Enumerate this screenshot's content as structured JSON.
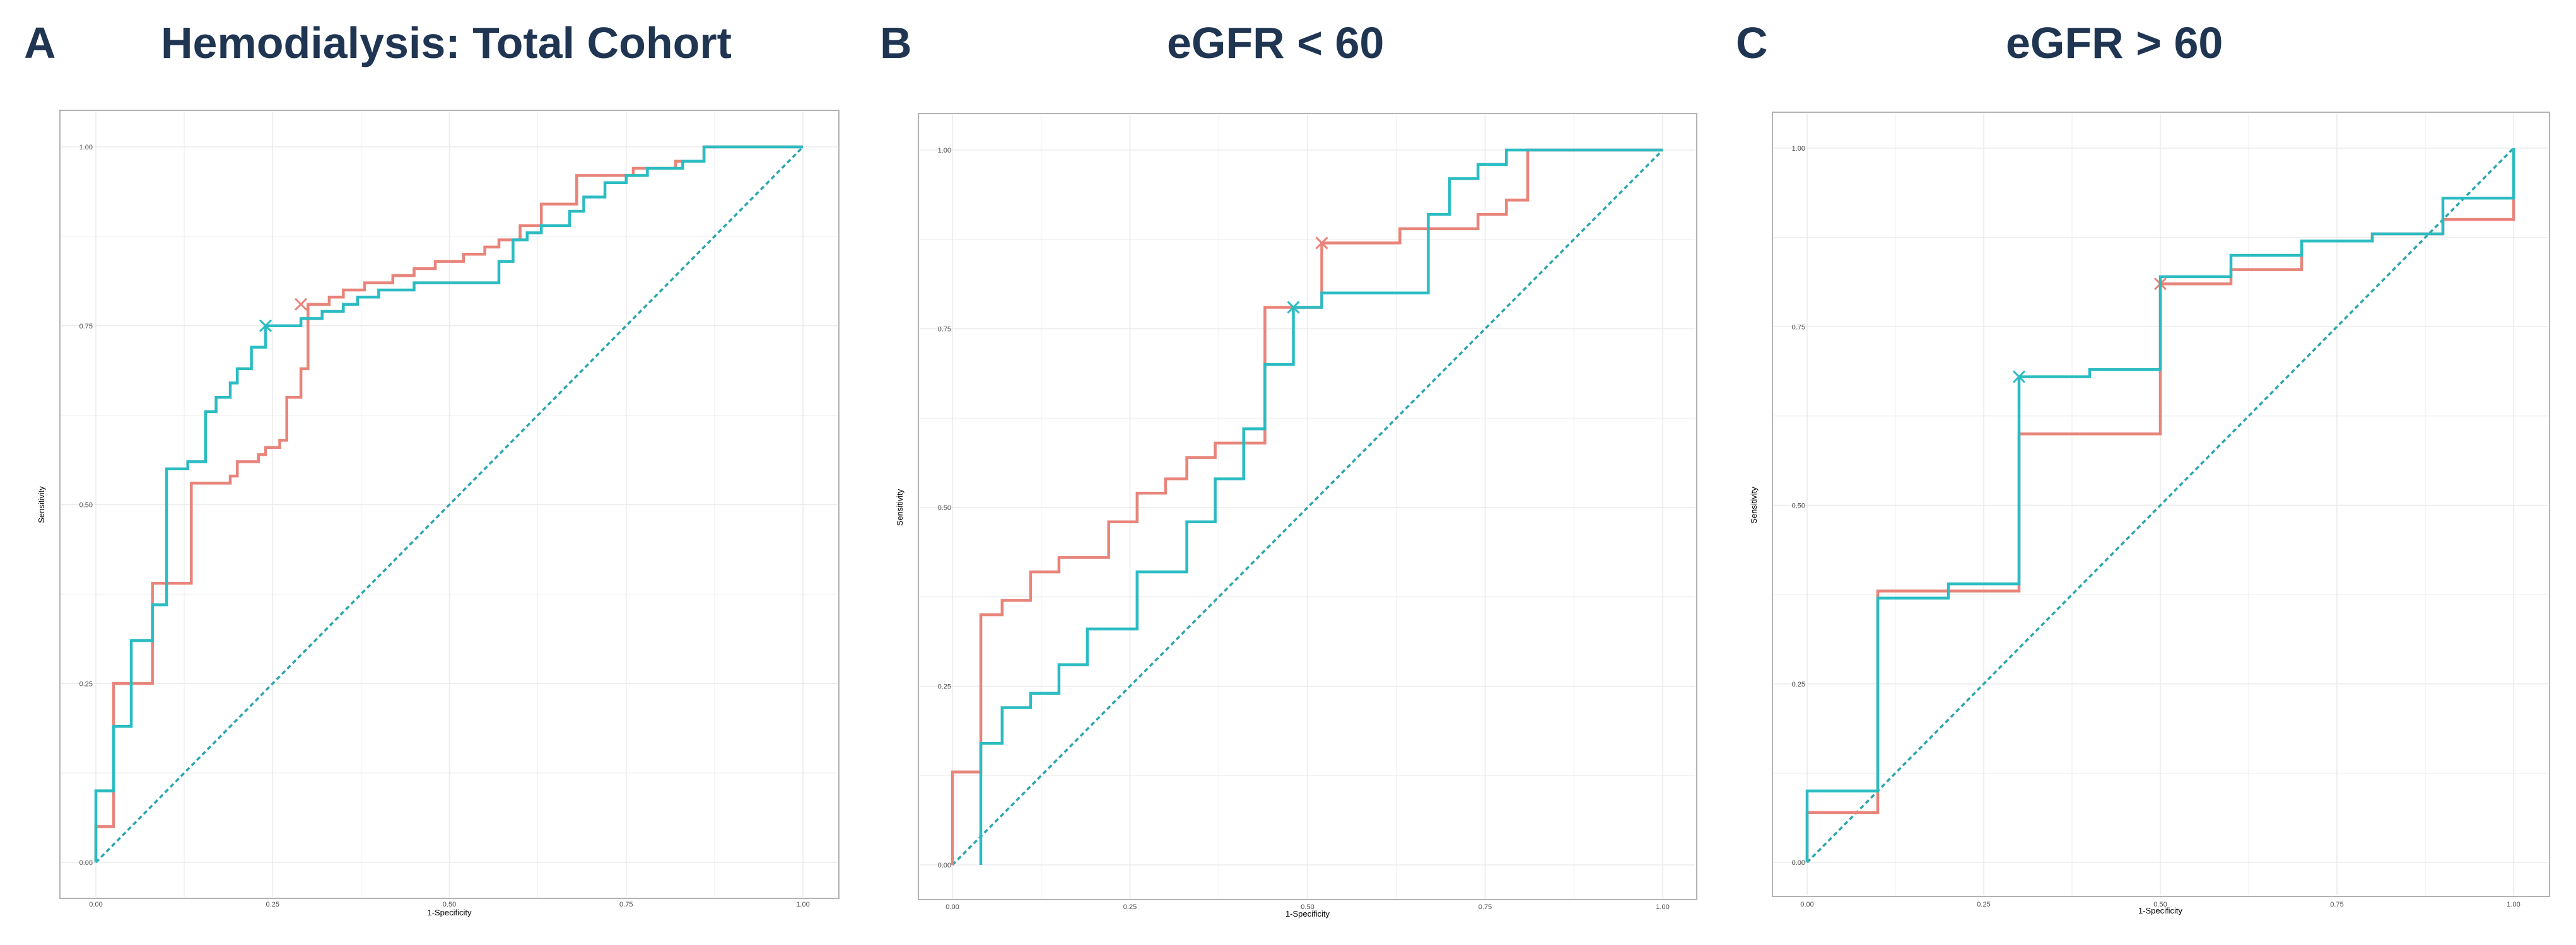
{
  "colors": {
    "curve_a": "#e8847a",
    "curve_b": "#2bbcc2",
    "diagonal": "#2aa6ad",
    "title": "#1f3552",
    "frame": "#b3b3b3",
    "grid": "#ebebeb"
  },
  "panels": [
    {
      "letter": "A",
      "title": "Hemodialysis: Total Cohort"
    },
    {
      "letter": "B",
      "title": "eGFR < 60"
    },
    {
      "letter": "C",
      "title": "eGFR > 60"
    }
  ],
  "chart_data": [
    {
      "type": "line",
      "title": "Hemodialysis: Total Cohort",
      "xlabel": "1-Specificity",
      "ylabel": "Sensitivity",
      "xlim": [
        0,
        1
      ],
      "ylim": [
        0,
        1
      ],
      "x_ticks": [
        "0.00",
        "0.25",
        "0.50",
        "0.75",
        "1.00"
      ],
      "y_ticks": [
        "0.00",
        "0.25",
        "0.50",
        "0.75",
        "1.00"
      ],
      "series": [
        {
          "name": "curve-red",
          "color": "#e8847a",
          "points": [
            [
              0,
              0
            ],
            [
              0,
              0.05
            ],
            [
              0.025,
              0.05
            ],
            [
              0.025,
              0.25
            ],
            [
              0.08,
              0.25
            ],
            [
              0.08,
              0.39
            ],
            [
              0.135,
              0.39
            ],
            [
              0.135,
              0.53
            ],
            [
              0.19,
              0.53
            ],
            [
              0.19,
              0.54
            ],
            [
              0.2,
              0.54
            ],
            [
              0.2,
              0.56
            ],
            [
              0.23,
              0.56
            ],
            [
              0.23,
              0.57
            ],
            [
              0.24,
              0.57
            ],
            [
              0.24,
              0.58
            ],
            [
              0.26,
              0.58
            ],
            [
              0.26,
              0.59
            ],
            [
              0.27,
              0.59
            ],
            [
              0.27,
              0.65
            ],
            [
              0.29,
              0.65
            ],
            [
              0.29,
              0.69
            ],
            [
              0.3,
              0.69
            ],
            [
              0.3,
              0.78
            ],
            [
              0.33,
              0.78
            ],
            [
              0.33,
              0.79
            ],
            [
              0.35,
              0.79
            ],
            [
              0.35,
              0.8
            ],
            [
              0.38,
              0.8
            ],
            [
              0.38,
              0.81
            ],
            [
              0.42,
              0.81
            ],
            [
              0.42,
              0.82
            ],
            [
              0.45,
              0.82
            ],
            [
              0.45,
              0.83
            ],
            [
              0.48,
              0.83
            ],
            [
              0.48,
              0.84
            ],
            [
              0.52,
              0.84
            ],
            [
              0.52,
              0.85
            ],
            [
              0.55,
              0.85
            ],
            [
              0.55,
              0.86
            ],
            [
              0.57,
              0.86
            ],
            [
              0.57,
              0.87
            ],
            [
              0.6,
              0.87
            ],
            [
              0.6,
              0.89
            ],
            [
              0.63,
              0.89
            ],
            [
              0.63,
              0.92
            ],
            [
              0.68,
              0.92
            ],
            [
              0.68,
              0.96
            ],
            [
              0.76,
              0.96
            ],
            [
              0.76,
              0.97
            ],
            [
              0.82,
              0.97
            ],
            [
              0.82,
              0.98
            ],
            [
              0.86,
              0.98
            ],
            [
              0.86,
              1
            ],
            [
              1,
              1
            ]
          ],
          "marker": [
            0.29,
            0.78
          ]
        },
        {
          "name": "curve-teal",
          "color": "#2bbcc2",
          "points": [
            [
              0,
              0
            ],
            [
              0,
              0.1
            ],
            [
              0.025,
              0.1
            ],
            [
              0.025,
              0.19
            ],
            [
              0.05,
              0.19
            ],
            [
              0.05,
              0.31
            ],
            [
              0.08,
              0.31
            ],
            [
              0.08,
              0.36
            ],
            [
              0.1,
              0.36
            ],
            [
              0.1,
              0.55
            ],
            [
              0.13,
              0.55
            ],
            [
              0.13,
              0.56
            ],
            [
              0.155,
              0.56
            ],
            [
              0.155,
              0.63
            ],
            [
              0.17,
              0.63
            ],
            [
              0.17,
              0.65
            ],
            [
              0.19,
              0.65
            ],
            [
              0.19,
              0.67
            ],
            [
              0.2,
              0.67
            ],
            [
              0.2,
              0.69
            ],
            [
              0.22,
              0.69
            ],
            [
              0.22,
              0.72
            ],
            [
              0.24,
              0.72
            ],
            [
              0.24,
              0.75
            ],
            [
              0.29,
              0.75
            ],
            [
              0.29,
              0.76
            ],
            [
              0.32,
              0.76
            ],
            [
              0.32,
              0.77
            ],
            [
              0.35,
              0.77
            ],
            [
              0.35,
              0.78
            ],
            [
              0.37,
              0.78
            ],
            [
              0.37,
              0.79
            ],
            [
              0.4,
              0.79
            ],
            [
              0.4,
              0.8
            ],
            [
              0.45,
              0.8
            ],
            [
              0.45,
              0.81
            ],
            [
              0.57,
              0.81
            ],
            [
              0.57,
              0.84
            ],
            [
              0.59,
              0.84
            ],
            [
              0.59,
              0.87
            ],
            [
              0.61,
              0.87
            ],
            [
              0.61,
              0.88
            ],
            [
              0.63,
              0.88
            ],
            [
              0.63,
              0.89
            ],
            [
              0.67,
              0.89
            ],
            [
              0.67,
              0.91
            ],
            [
              0.69,
              0.91
            ],
            [
              0.69,
              0.93
            ],
            [
              0.72,
              0.93
            ],
            [
              0.72,
              0.95
            ],
            [
              0.75,
              0.95
            ],
            [
              0.75,
              0.96
            ],
            [
              0.78,
              0.96
            ],
            [
              0.78,
              0.97
            ],
            [
              0.83,
              0.97
            ],
            [
              0.83,
              0.98
            ],
            [
              0.86,
              0.98
            ],
            [
              0.86,
              1
            ],
            [
              1,
              1
            ]
          ],
          "marker": [
            0.24,
            0.75
          ]
        }
      ],
      "reference_line": [
        [
          0,
          0
        ],
        [
          1,
          1
        ]
      ]
    },
    {
      "type": "line",
      "title": "eGFR < 60",
      "xlabel": "1-Specificity",
      "ylabel": "Sensitivity",
      "xlim": [
        0,
        1
      ],
      "ylim": [
        0,
        1
      ],
      "x_ticks": [
        "0.00",
        "0.25",
        "0.50",
        "0.75",
        "1.00"
      ],
      "y_ticks": [
        "0.00",
        "0.25",
        "0.50",
        "0.75",
        "1.00"
      ],
      "series": [
        {
          "name": "curve-red",
          "color": "#e8847a",
          "points": [
            [
              0,
              0
            ],
            [
              0,
              0.13
            ],
            [
              0.04,
              0.13
            ],
            [
              0.04,
              0.35
            ],
            [
              0.07,
              0.35
            ],
            [
              0.07,
              0.37
            ],
            [
              0.11,
              0.37
            ],
            [
              0.11,
              0.41
            ],
            [
              0.15,
              0.41
            ],
            [
              0.15,
              0.43
            ],
            [
              0.22,
              0.43
            ],
            [
              0.22,
              0.48
            ],
            [
              0.26,
              0.48
            ],
            [
              0.26,
              0.52
            ],
            [
              0.3,
              0.52
            ],
            [
              0.3,
              0.54
            ],
            [
              0.33,
              0.54
            ],
            [
              0.33,
              0.57
            ],
            [
              0.37,
              0.57
            ],
            [
              0.37,
              0.59
            ],
            [
              0.44,
              0.59
            ],
            [
              0.44,
              0.78
            ],
            [
              0.52,
              0.78
            ],
            [
              0.52,
              0.87
            ],
            [
              0.63,
              0.87
            ],
            [
              0.63,
              0.89
            ],
            [
              0.74,
              0.89
            ],
            [
              0.74,
              0.91
            ],
            [
              0.78,
              0.91
            ],
            [
              0.78,
              0.93
            ],
            [
              0.81,
              0.93
            ],
            [
              0.81,
              1
            ],
            [
              1,
              1
            ]
          ],
          "marker": [
            0.52,
            0.87
          ]
        },
        {
          "name": "curve-teal",
          "color": "#2bbcc2",
          "points": [
            [
              0.04,
              0
            ],
            [
              0.04,
              0.17
            ],
            [
              0.07,
              0.17
            ],
            [
              0.07,
              0.22
            ],
            [
              0.11,
              0.22
            ],
            [
              0.11,
              0.24
            ],
            [
              0.15,
              0.24
            ],
            [
              0.15,
              0.28
            ],
            [
              0.19,
              0.28
            ],
            [
              0.19,
              0.33
            ],
            [
              0.26,
              0.33
            ],
            [
              0.26,
              0.41
            ],
            [
              0.33,
              0.41
            ],
            [
              0.33,
              0.48
            ],
            [
              0.37,
              0.48
            ],
            [
              0.37,
              0.54
            ],
            [
              0.41,
              0.54
            ],
            [
              0.41,
              0.61
            ],
            [
              0.44,
              0.61
            ],
            [
              0.44,
              0.7
            ],
            [
              0.48,
              0.7
            ],
            [
              0.48,
              0.78
            ],
            [
              0.52,
              0.78
            ],
            [
              0.52,
              0.8
            ],
            [
              0.67,
              0.8
            ],
            [
              0.67,
              0.91
            ],
            [
              0.7,
              0.91
            ],
            [
              0.7,
              0.96
            ],
            [
              0.74,
              0.96
            ],
            [
              0.74,
              0.98
            ],
            [
              0.78,
              0.98
            ],
            [
              0.78,
              1
            ],
            [
              1,
              1
            ]
          ],
          "marker": [
            0.48,
            0.78
          ]
        }
      ],
      "reference_line": [
        [
          0,
          0
        ],
        [
          1,
          1
        ]
      ]
    },
    {
      "type": "line",
      "title": "eGFR > 60",
      "xlabel": "1-Specificity",
      "ylabel": "Sensitivity",
      "xlim": [
        0,
        1
      ],
      "ylim": [
        0,
        1
      ],
      "x_ticks": [
        "0.00",
        "0.25",
        "0.50",
        "0.75",
        "1.00"
      ],
      "y_ticks": [
        "0.00",
        "0.25",
        "0.50",
        "0.75",
        "1.00"
      ],
      "series": [
        {
          "name": "curve-red",
          "color": "#e8847a",
          "points": [
            [
              0,
              0
            ],
            [
              0,
              0.07
            ],
            [
              0.1,
              0.07
            ],
            [
              0.1,
              0.38
            ],
            [
              0.3,
              0.38
            ],
            [
              0.3,
              0.6
            ],
            [
              0.5,
              0.6
            ],
            [
              0.5,
              0.81
            ],
            [
              0.6,
              0.81
            ],
            [
              0.6,
              0.83
            ],
            [
              0.7,
              0.83
            ],
            [
              0.7,
              0.87
            ],
            [
              0.8,
              0.87
            ],
            [
              0.8,
              0.88
            ],
            [
              0.9,
              0.88
            ],
            [
              0.9,
              0.9
            ],
            [
              1,
              0.9
            ],
            [
              1,
              1
            ]
          ],
          "marker": [
            0.5,
            0.81
          ]
        },
        {
          "name": "curve-teal",
          "color": "#2bbcc2",
          "points": [
            [
              0,
              0
            ],
            [
              0,
              0.1
            ],
            [
              0.1,
              0.1
            ],
            [
              0.1,
              0.37
            ],
            [
              0.2,
              0.37
            ],
            [
              0.2,
              0.39
            ],
            [
              0.3,
              0.39
            ],
            [
              0.3,
              0.68
            ],
            [
              0.4,
              0.68
            ],
            [
              0.4,
              0.69
            ],
            [
              0.5,
              0.69
            ],
            [
              0.5,
              0.82
            ],
            [
              0.6,
              0.82
            ],
            [
              0.6,
              0.85
            ],
            [
              0.7,
              0.85
            ],
            [
              0.7,
              0.87
            ],
            [
              0.8,
              0.87
            ],
            [
              0.8,
              0.88
            ],
            [
              0.9,
              0.88
            ],
            [
              0.9,
              0.93
            ],
            [
              1,
              0.93
            ],
            [
              1,
              1
            ]
          ],
          "marker": [
            0.3,
            0.68
          ]
        }
      ],
      "reference_line": [
        [
          0,
          0
        ],
        [
          1,
          1
        ]
      ]
    }
  ]
}
